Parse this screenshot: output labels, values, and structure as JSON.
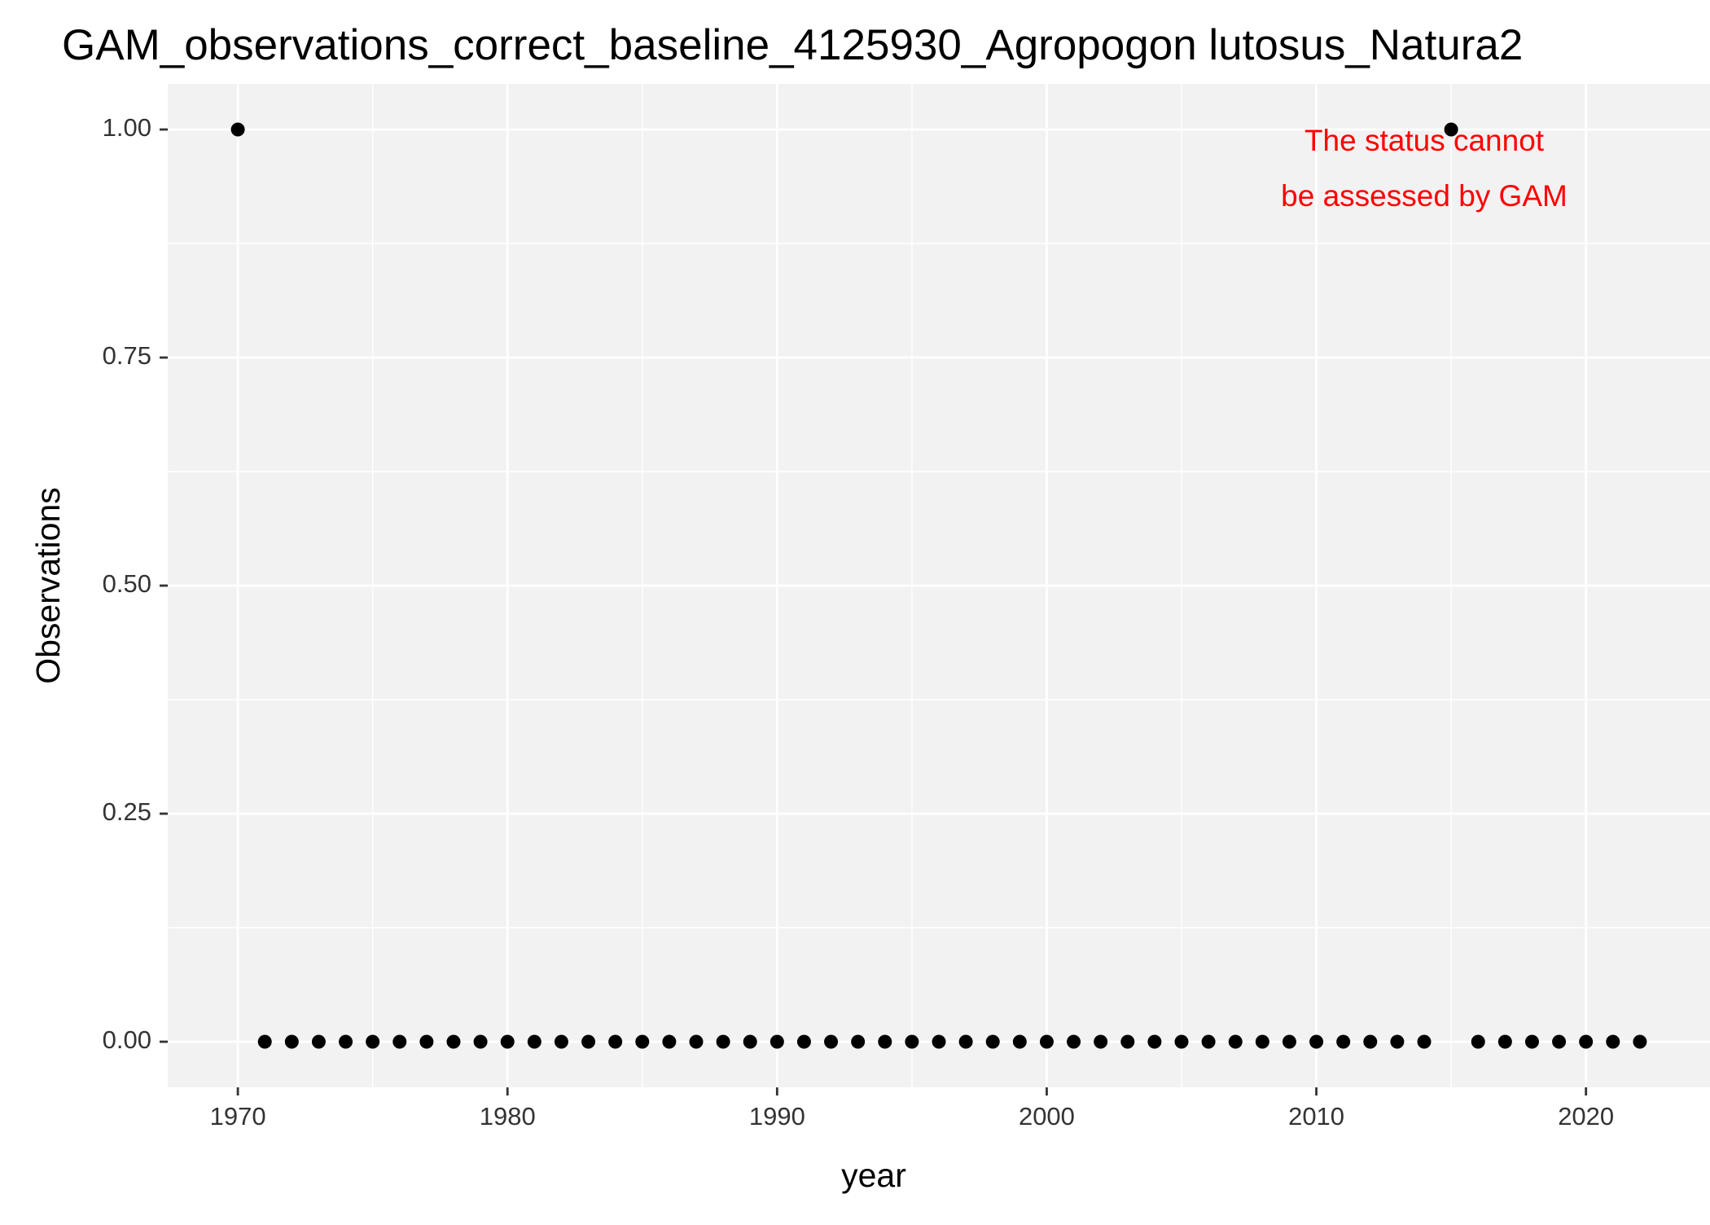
{
  "chart_data": {
    "type": "scatter",
    "title": "GAM_observations_correct_baseline_4125930_Agropogon lutosus_Natura2",
    "xlabel": "year",
    "ylabel": "Observations",
    "xlim": [
      1967.4,
      2024.6
    ],
    "ylim": [
      -0.05,
      1.05
    ],
    "x_ticks": [
      1970,
      1980,
      1990,
      2000,
      2010,
      2020
    ],
    "x_tick_labels": [
      "1970",
      "1980",
      "1990",
      "2000",
      "2010",
      "2020"
    ],
    "x_minor_ticks": [
      1975,
      1985,
      1995,
      2005,
      2015
    ],
    "y_ticks": [
      0,
      0.25,
      0.5,
      0.75,
      1
    ],
    "y_tick_labels": [
      "0.00",
      "0.25",
      "0.50",
      "0.75",
      "1.00"
    ],
    "y_minor_ticks": [
      0.125,
      0.375,
      0.625,
      0.875
    ],
    "grid": true,
    "legend": "none",
    "point_color": "#000000",
    "panel_background": "#f2f2f2",
    "grid_color": "#ffffff",
    "annotation": {
      "lines": [
        "The status cannot",
        "be assessed by GAM"
      ],
      "color": "#ff0000",
      "x": 2014,
      "y": 0.955
    },
    "points": {
      "x": [
        1970,
        1971,
        1972,
        1973,
        1974,
        1975,
        1976,
        1977,
        1978,
        1979,
        1980,
        1981,
        1982,
        1983,
        1984,
        1985,
        1986,
        1987,
        1988,
        1989,
        1990,
        1991,
        1992,
        1993,
        1994,
        1995,
        1996,
        1997,
        1998,
        1999,
        2000,
        2001,
        2002,
        2003,
        2004,
        2005,
        2006,
        2007,
        2008,
        2009,
        2010,
        2011,
        2012,
        2013,
        2014,
        2015,
        2016,
        2017,
        2018,
        2019,
        2020,
        2021,
        2022
      ],
      "y": [
        1,
        0,
        0,
        0,
        0,
        0,
        0,
        0,
        0,
        0,
        0,
        0,
        0,
        0,
        0,
        0,
        0,
        0,
        0,
        0,
        0,
        0,
        0,
        0,
        0,
        0,
        0,
        0,
        0,
        0,
        0,
        0,
        0,
        0,
        0,
        0,
        0,
        0,
        0,
        0,
        0,
        0,
        0,
        0,
        0,
        1,
        0,
        0,
        0,
        0,
        0,
        0,
        0
      ]
    }
  }
}
